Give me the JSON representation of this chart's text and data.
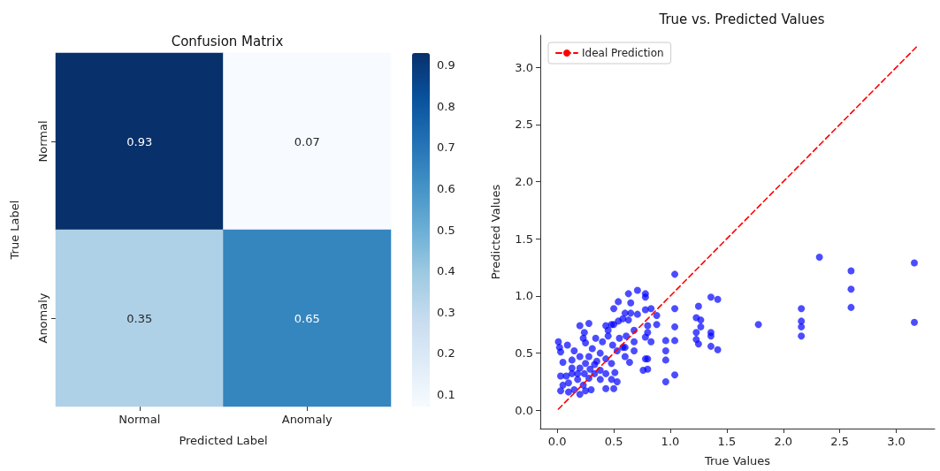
{
  "chart_data": [
    {
      "type": "heatmap",
      "title": "Confusion Matrix",
      "xlabel": "Predicted Label",
      "ylabel": "True Label",
      "categories": [
        "Normal",
        "Anomaly"
      ],
      "y_categories": [
        "Normal",
        "Anomaly"
      ],
      "cells": [
        [
          0.93,
          0.07
        ],
        [
          0.35,
          0.65
        ]
      ],
      "clim": [
        0.07,
        0.93
      ],
      "cticks": [
        0.1,
        0.2,
        0.3,
        0.4,
        0.5,
        0.6,
        0.7,
        0.8,
        0.9
      ],
      "data_labels": true
    },
    {
      "type": "scatter",
      "title": "True vs. Predicted Values",
      "xlabel": "True Values",
      "ylabel": "Predicted Values",
      "xlim": [
        -0.15,
        3.34
      ],
      "ylim": [
        -0.16,
        3.28
      ],
      "xticks": [
        {
          "value": 0,
          "label": "0.0"
        },
        {
          "value": 0.5,
          "label": "0.5"
        },
        {
          "value": 1,
          "label": "1.0"
        },
        {
          "value": 1.5,
          "label": "1.5"
        },
        {
          "value": 2,
          "label": "2.0"
        },
        {
          "value": 2.5,
          "label": "2.5"
        },
        {
          "value": 3,
          "label": "3.0"
        }
      ],
      "yticks": [
        {
          "value": 0,
          "label": "0.0"
        },
        {
          "value": 0.5,
          "label": "0.5"
        },
        {
          "value": 1,
          "label": "1.0"
        },
        {
          "value": 1.5,
          "label": "1.5"
        },
        {
          "value": 2,
          "label": "2.0"
        },
        {
          "value": 2.5,
          "label": "2.5"
        },
        {
          "value": 3,
          "label": "3.0"
        }
      ],
      "legend": "top left",
      "grid": false,
      "series": [
        {
          "type": "scatter",
          "color": "#0000ff",
          "marker": "circle",
          "x": [
            1.04,
            1.04,
            1.04,
            1.04,
            1.04,
            0.96,
            0.96,
            0.96,
            0.96,
            0.71,
            0.78,
            0.78,
            0.63,
            0.54,
            0.5,
            0.65,
            0.65,
            0.6,
            0.71,
            0.78,
            0.83,
            0.88,
            0.88,
            0.8,
            0.8,
            0.78,
            0.83,
            0.78,
            0.8,
            0.76,
            0.8,
            0.68,
            0.68,
            0.68,
            0.64,
            0.6,
            0.58,
            0.55,
            0.5,
            0.48,
            0.43,
            0.45,
            0.4,
            0.34,
            0.31,
            0.28,
            0.2,
            0.24,
            0.23,
            0.25,
            0.15,
            0.01,
            0.02,
            0.03,
            0.09,
            0.05,
            0.13,
            0.2,
            0.28,
            0.38,
            0.43,
            0.48,
            0.51,
            0.53,
            0.5,
            0.43,
            0.38,
            0.33,
            0.28,
            0.23,
            0.18,
            0.13,
            0.08,
            0.03,
            0.03,
            0.05,
            0.1,
            0.15,
            0.2,
            0.25,
            0.3,
            0.13,
            0.2,
            0.25,
            0.33,
            0.38,
            0.43,
            0.48,
            0.1,
            0.18,
            0.24,
            0.29,
            0.35,
            0.53,
            0.6,
            0.61,
            0.49,
            0.45,
            0.54,
            0.58,
            0.63,
            2.32,
            2.6,
            2.6,
            2.6,
            3.16,
            3.16,
            2.16,
            2.16,
            2.16,
            2.16,
            1.78,
            1.36,
            1.42,
            1.25,
            1.23,
            1.27,
            1.27,
            1.23,
            1.23,
            1.25,
            1.36,
            1.36,
            1.36,
            1.42
          ],
          "values": [
            1.19,
            0.89,
            0.73,
            0.61,
            0.31,
            0.61,
            0.52,
            0.44,
            0.25,
            1.05,
            1.02,
            0.99,
            1.02,
            0.95,
            0.89,
            0.94,
            0.85,
            0.85,
            0.84,
            0.88,
            0.89,
            0.83,
            0.75,
            0.74,
            0.68,
            0.64,
            0.6,
            0.45,
            0.45,
            0.35,
            0.36,
            0.7,
            0.6,
            0.52,
            0.42,
            0.47,
            0.55,
            0.63,
            0.75,
            0.75,
            0.74,
            0.65,
            0.6,
            0.63,
            0.54,
            0.76,
            0.74,
            0.68,
            0.63,
            0.59,
            0.52,
            0.6,
            0.55,
            0.51,
            0.57,
            0.42,
            0.44,
            0.47,
            0.47,
            0.5,
            0.45,
            0.41,
            0.33,
            0.25,
            0.19,
            0.19,
            0.27,
            0.32,
            0.28,
            0.22,
            0.27,
            0.32,
            0.3,
            0.3,
            0.17,
            0.22,
            0.16,
            0.18,
            0.14,
            0.17,
            0.18,
            0.37,
            0.37,
            0.41,
            0.4,
            0.35,
            0.32,
            0.27,
            0.24,
            0.32,
            0.32,
            0.36,
            0.43,
            0.52,
            0.55,
            0.65,
            0.57,
            0.7,
            0.78,
            0.8,
            0.79,
            1.34,
            1.22,
            1.06,
            0.9,
            1.29,
            0.77,
            0.89,
            0.78,
            0.73,
            0.65,
            0.75,
            0.99,
            0.97,
            0.91,
            0.81,
            0.79,
            0.73,
            0.68,
            0.62,
            0.58,
            0.68,
            0.65,
            0.56,
            0.53
          ]
        },
        {
          "type": "line",
          "name": "Ideal Prediction",
          "color": "#ff0000",
          "line_style": "dashed",
          "marker": "none",
          "x": [
            0.01,
            3.18
          ],
          "values": [
            0.01,
            3.18
          ]
        }
      ]
    }
  ]
}
